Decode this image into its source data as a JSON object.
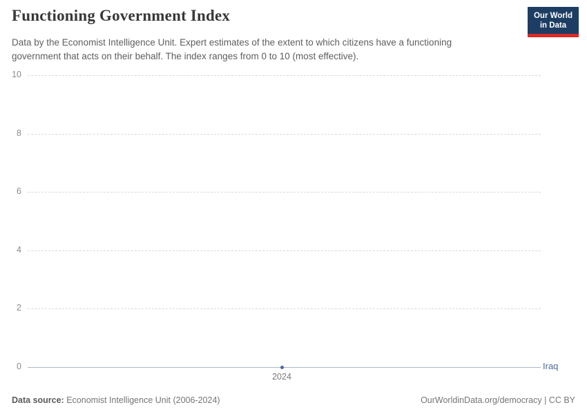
{
  "header": {
    "title": "Functioning Government Index",
    "logo": {
      "line1": "Our World",
      "line2": "in Data"
    }
  },
  "subtitle": "Data by the Economist Intelligence Unit. Expert estimates of the extent to which citizens have a functioning government that acts on their behalf. The index ranges from 0 to 10 (most effective).",
  "footer": {
    "source_label": "Data source:",
    "source_text": " Economist Intelligence Unit (2006-2024)",
    "right_text": "OurWorldinData.org/democracy | CC BY"
  },
  "colors": {
    "entity_blue": "#4c6a9c",
    "logo_navy": "#1d3d63",
    "logo_red": "#dc2a26",
    "gridline": "#d9d9d9",
    "axis_line": "#a9b7c6"
  },
  "chart_data": {
    "type": "scatter",
    "title": "Functioning Government Index",
    "x": [
      2024
    ],
    "xticks": [
      "2024"
    ],
    "series": [
      {
        "name": "Iraq",
        "values": [
          0
        ],
        "color": "#4c6a9c"
      }
    ],
    "ylim": [
      0,
      10
    ],
    "yticks": [
      0,
      2,
      4,
      6,
      8,
      10
    ],
    "xlabel": "",
    "ylabel": "",
    "grid": "horizontal-dashed",
    "legend_position": "right-end-label"
  }
}
